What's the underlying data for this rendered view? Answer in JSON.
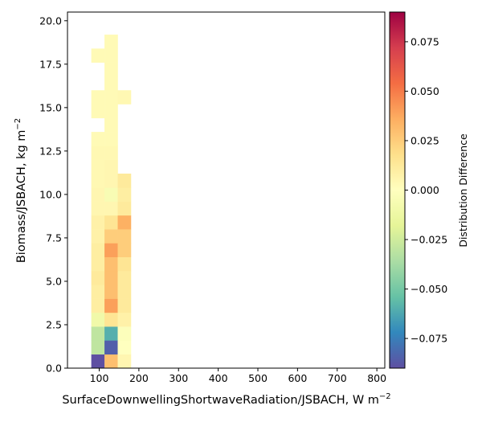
{
  "chart_data": {
    "type": "heatmap",
    "xlabel": "SurfaceDownwellingShortwaveRadiation/JSBACH,  W m",
    "xlabel_sup": "−2",
    "ylabel": "Biomass/JSBACH,  kg m",
    "ylabel_sup": "−2",
    "colorbar_label": "Distribution Difference",
    "colormap": "Spectral_r",
    "xlim": [
      20,
      820
    ],
    "ylim": [
      0,
      20.5
    ],
    "xticks": [
      100,
      200,
      300,
      400,
      500,
      600,
      700,
      800
    ],
    "xtick_labels": [
      "100",
      "200",
      "300",
      "400",
      "500",
      "600",
      "700",
      "800"
    ],
    "yticks": [
      0,
      2.5,
      5,
      7.5,
      10,
      12.5,
      15,
      17.5,
      20
    ],
    "ytick_labels": [
      "0.0",
      "2.5",
      "5.0",
      "7.5",
      "10.0",
      "12.5",
      "15.0",
      "17.5",
      "20.0"
    ],
    "clim": [
      -0.09,
      0.09
    ],
    "cticks": [
      -0.075,
      -0.05,
      -0.025,
      0,
      0.025,
      0.05,
      0.075
    ],
    "ctick_labels": [
      "−0.075",
      "−0.050",
      "−0.025",
      "0.000",
      "0.025",
      "0.050",
      "0.075"
    ],
    "bin_width_x": 33.3,
    "bin_height_y": 0.8,
    "cells": [
      {
        "x": 80,
        "y": 0.0,
        "value": -0.09
      },
      {
        "x": 113.3,
        "y": 0.0,
        "value": 0.03
      },
      {
        "x": 146.6,
        "y": 0.0,
        "value": 0.005
      },
      {
        "x": 80,
        "y": 0.8,
        "value": -0.03
      },
      {
        "x": 113.3,
        "y": 0.8,
        "value": -0.085
      },
      {
        "x": 146.6,
        "y": 0.8,
        "value": 0.0
      },
      {
        "x": 80,
        "y": 1.6,
        "value": -0.03
      },
      {
        "x": 113.3,
        "y": 1.6,
        "value": -0.06
      },
      {
        "x": 146.6,
        "y": 1.6,
        "value": -0.002
      },
      {
        "x": 80,
        "y": 2.4,
        "value": -0.01
      },
      {
        "x": 113.3,
        "y": 2.4,
        "value": 0.015
      },
      {
        "x": 146.6,
        "y": 2.4,
        "value": 0.008
      },
      {
        "x": 80,
        "y": 3.2,
        "value": 0.01
      },
      {
        "x": 113.3,
        "y": 3.2,
        "value": 0.04
      },
      {
        "x": 146.6,
        "y": 3.2,
        "value": 0.012
      },
      {
        "x": 80,
        "y": 4.0,
        "value": 0.01
      },
      {
        "x": 113.3,
        "y": 4.0,
        "value": 0.03
      },
      {
        "x": 146.6,
        "y": 4.0,
        "value": 0.012
      },
      {
        "x": 80,
        "y": 4.8,
        "value": 0.012
      },
      {
        "x": 113.3,
        "y": 4.8,
        "value": 0.03
      },
      {
        "x": 146.6,
        "y": 4.8,
        "value": 0.012
      },
      {
        "x": 80,
        "y": 5.6,
        "value": 0.01
      },
      {
        "x": 113.3,
        "y": 5.6,
        "value": 0.03
      },
      {
        "x": 146.6,
        "y": 5.6,
        "value": 0.015
      },
      {
        "x": 80,
        "y": 6.4,
        "value": 0.01
      },
      {
        "x": 113.3,
        "y": 6.4,
        "value": 0.04
      },
      {
        "x": 146.6,
        "y": 6.4,
        "value": 0.025
      },
      {
        "x": 80,
        "y": 7.2,
        "value": 0.008
      },
      {
        "x": 113.3,
        "y": 7.2,
        "value": 0.025
      },
      {
        "x": 146.6,
        "y": 7.2,
        "value": 0.025
      },
      {
        "x": 80,
        "y": 8.0,
        "value": 0.008
      },
      {
        "x": 113.3,
        "y": 8.0,
        "value": 0.015
      },
      {
        "x": 146.6,
        "y": 8.0,
        "value": 0.035
      },
      {
        "x": 80,
        "y": 8.8,
        "value": 0.005
      },
      {
        "x": 113.3,
        "y": 8.8,
        "value": 0.005
      },
      {
        "x": 146.6,
        "y": 8.8,
        "value": 0.012
      },
      {
        "x": 80,
        "y": 9.6,
        "value": 0.005
      },
      {
        "x": 113.3,
        "y": 9.6,
        "value": -0.005
      },
      {
        "x": 146.6,
        "y": 9.6,
        "value": 0.01
      },
      {
        "x": 80,
        "y": 10.4,
        "value": 0.004
      },
      {
        "x": 113.3,
        "y": 10.4,
        "value": 0.005
      },
      {
        "x": 146.6,
        "y": 10.4,
        "value": 0.012
      },
      {
        "x": 80,
        "y": 11.2,
        "value": 0.004
      },
      {
        "x": 113.3,
        "y": 11.2,
        "value": 0.005
      },
      {
        "x": 80,
        "y": 12.0,
        "value": 0.004
      },
      {
        "x": 113.3,
        "y": 12.0,
        "value": 0.004
      },
      {
        "x": 80,
        "y": 12.8,
        "value": 0.003
      },
      {
        "x": 113.3,
        "y": 12.8,
        "value": 0.003
      },
      {
        "x": 113.3,
        "y": 13.6,
        "value": 0.003
      },
      {
        "x": 80,
        "y": 14.4,
        "value": 0.003
      },
      {
        "x": 113.3,
        "y": 14.4,
        "value": 0.003
      },
      {
        "x": 80,
        "y": 15.2,
        "value": 0.003
      },
      {
        "x": 113.3,
        "y": 15.2,
        "value": 0.003
      },
      {
        "x": 146.6,
        "y": 15.2,
        "value": 0.004
      },
      {
        "x": 113.3,
        "y": 16.0,
        "value": 0.003
      },
      {
        "x": 113.3,
        "y": 16.8,
        "value": 0.003
      },
      {
        "x": 80,
        "y": 17.6,
        "value": 0.003
      },
      {
        "x": 113.3,
        "y": 17.6,
        "value": 0.003
      },
      {
        "x": 113.3,
        "y": 18.4,
        "value": 0.003
      }
    ]
  }
}
